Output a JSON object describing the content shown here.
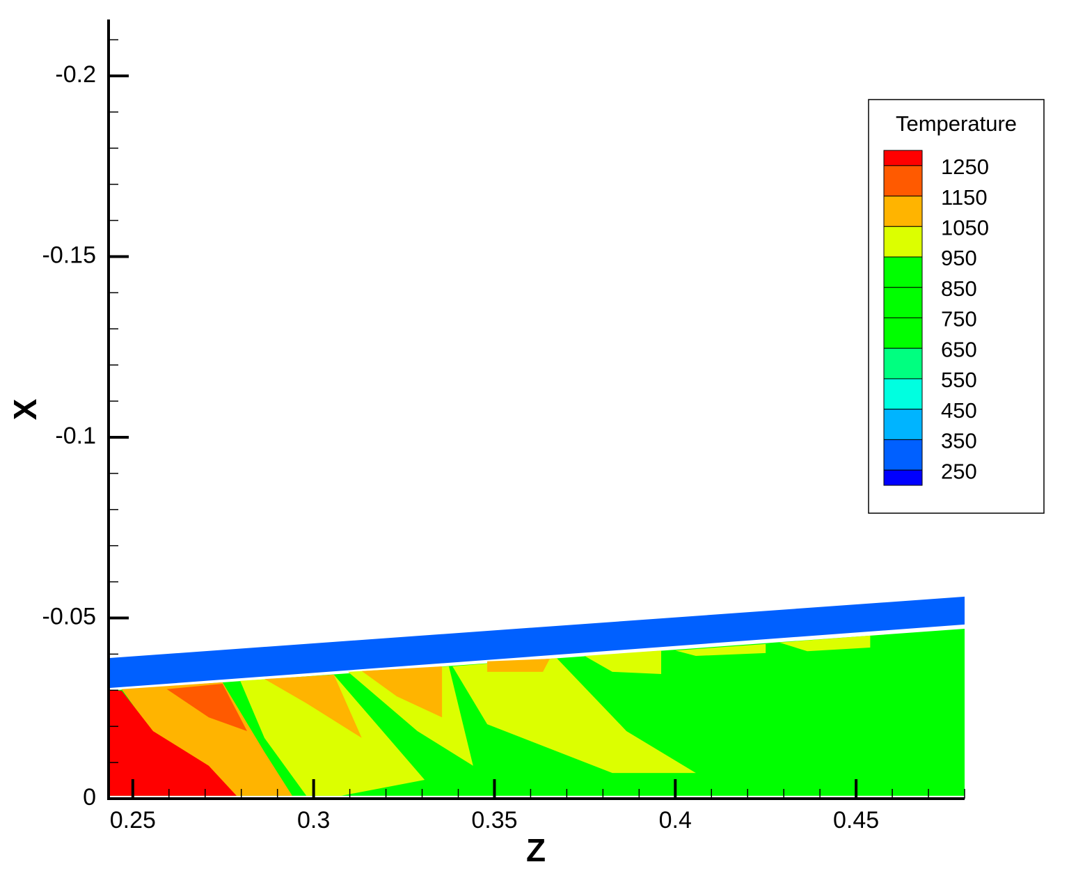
{
  "chart_data": {
    "type": "contour",
    "xlabel": "Z",
    "ylabel": "X",
    "xlim": [
      0.2433,
      0.48
    ],
    "ylim": [
      0,
      -0.2156
    ],
    "xticks": [
      0.25,
      0.3,
      0.35,
      0.4,
      0.45
    ],
    "yticks": [
      0,
      -0.05,
      -0.1,
      -0.15,
      -0.2
    ],
    "legend": {
      "title": "Temperature",
      "levels": [
        1250,
        1150,
        1050,
        950,
        850,
        750,
        650,
        550,
        450,
        350,
        250
      ],
      "colors": [
        "#ff0000",
        "#ff5a00",
        "#ffb400",
        "#dcff00",
        "#00ff00",
        "#00ff00",
        "#00ff00",
        "#00ff80",
        "#00ffe0",
        "#00b4ff",
        "#0060ff",
        "#0000ff"
      ],
      "position": "upper right"
    },
    "regions": [
      {
        "color": "#0060ff",
        "points": [
          [
            0.2433,
            -0.0389
          ],
          [
            0.48,
            -0.0559
          ],
          [
            0.48,
            -0.0482
          ],
          [
            0.2433,
            -0.0306
          ]
        ]
      },
      {
        "color": "#00ff00",
        "points": [
          [
            0.2433,
            -0.0299
          ],
          [
            0.48,
            -0.047
          ],
          [
            0.48,
            -0.0008
          ],
          [
            0.2433,
            -0.0008
          ]
        ]
      },
      {
        "color": "#ffb400",
        "points": [
          [
            0.2469,
            -0.0303
          ],
          [
            0.2748,
            -0.0322
          ],
          [
            0.2864,
            -0.0129
          ],
          [
            0.2941,
            -0.0008
          ],
          [
            0.2787,
            -0.0008
          ],
          [
            0.2594,
            -0.0129
          ]
        ]
      },
      {
        "color": "#ff0000",
        "points": [
          [
            0.2433,
            -0.0299
          ],
          [
            0.2469,
            -0.0299
          ],
          [
            0.2556,
            -0.0187
          ],
          [
            0.271,
            -0.0091
          ],
          [
            0.2787,
            -0.0008
          ],
          [
            0.2433,
            -0.0008
          ]
        ]
      },
      {
        "color": "#ff5a00",
        "points": [
          [
            0.2594,
            -0.0303
          ],
          [
            0.2748,
            -0.0318
          ],
          [
            0.2816,
            -0.0187
          ],
          [
            0.271,
            -0.0225
          ]
        ]
      },
      {
        "color": "#dcff00",
        "points": [
          [
            0.2797,
            -0.0326
          ],
          [
            0.3056,
            -0.0343
          ],
          [
            0.3307,
            -0.0052
          ],
          [
            0.3076,
            -0.0008
          ],
          [
            0.298,
            -0.0008
          ],
          [
            0.2864,
            -0.0168
          ]
        ]
      },
      {
        "color": "#ffb400",
        "points": [
          [
            0.2864,
            -0.0331
          ],
          [
            0.3056,
            -0.0343
          ],
          [
            0.3133,
            -0.0168
          ],
          [
            0.298,
            -0.0264
          ]
        ]
      },
      {
        "color": "#dcff00",
        "points": [
          [
            0.3095,
            -0.0351
          ],
          [
            0.3374,
            -0.0366
          ],
          [
            0.3441,
            -0.0091
          ],
          [
            0.3287,
            -0.0187
          ]
        ]
      },
      {
        "color": "#ffb400",
        "points": [
          [
            0.3133,
            -0.0353
          ],
          [
            0.3355,
            -0.0366
          ],
          [
            0.3355,
            -0.0225
          ],
          [
            0.323,
            -0.0283
          ]
        ]
      },
      {
        "color": "#dcff00",
        "points": [
          [
            0.3384,
            -0.0366
          ],
          [
            0.3672,
            -0.0389
          ],
          [
            0.3865,
            -0.0187
          ],
          [
            0.4057,
            -0.0071
          ],
          [
            0.3826,
            -0.0071
          ],
          [
            0.348,
            -0.0206
          ]
        ]
      },
      {
        "color": "#ffb400",
        "points": [
          [
            0.348,
            -0.038
          ],
          [
            0.3653,
            -0.0387
          ],
          [
            0.3634,
            -0.0351
          ],
          [
            0.348,
            -0.0351
          ]
        ]
      },
      {
        "color": "#dcff00",
        "points": [
          [
            0.3749,
            -0.0395
          ],
          [
            0.3961,
            -0.041
          ],
          [
            0.3961,
            -0.0345
          ],
          [
            0.3826,
            -0.0351
          ]
        ]
      },
      {
        "color": "#dcff00",
        "points": [
          [
            0.4,
            -0.041
          ],
          [
            0.425,
            -0.0428
          ],
          [
            0.425,
            -0.0403
          ],
          [
            0.4057,
            -0.0395
          ]
        ]
      },
      {
        "color": "#dcff00",
        "points": [
          [
            0.4288,
            -0.0432
          ],
          [
            0.4539,
            -0.0451
          ],
          [
            0.4539,
            -0.0418
          ],
          [
            0.4365,
            -0.0408
          ]
        ]
      }
    ]
  }
}
